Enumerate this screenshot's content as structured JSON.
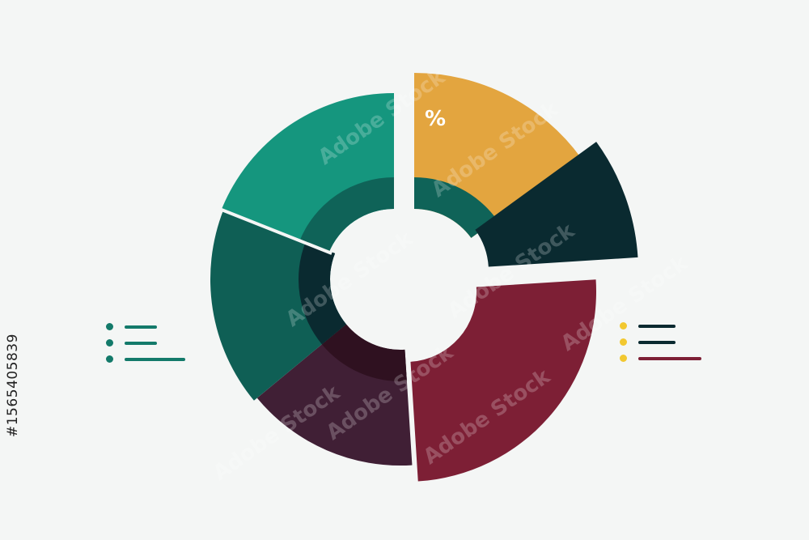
{
  "chart_data": {
    "type": "pie",
    "variant": "exploded donut",
    "title": "",
    "annotation": "%",
    "values": [
      15,
      9,
      25,
      15,
      17,
      19
    ],
    "colors": [
      "#e3a53f",
      "#0a2a30",
      "#7d1f35",
      "#401f35",
      "#0f5f55",
      "#15967e"
    ],
    "inner_ring_colors": [
      "#0f6358",
      null,
      null,
      "#2f1120",
      "#0a2a30",
      "#0f6358"
    ],
    "legend_left": {
      "dot_color": "#137a6a",
      "line_color": "#137a6a",
      "items": 3
    },
    "legend_right": {
      "dot_color": "#f2c830",
      "line_colors": [
        "#0a2a30",
        "#0a2a30",
        "#7d1f35"
      ],
      "items": 3
    }
  },
  "watermark": "Adobe Stock",
  "stock_id": "#1565405839"
}
